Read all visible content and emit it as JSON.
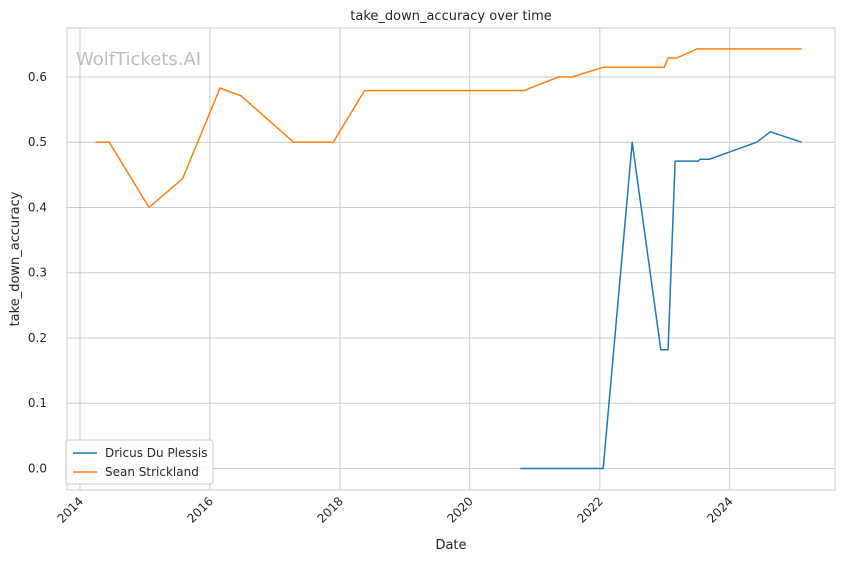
{
  "chart_data": {
    "type": "line",
    "title": "take_down_accuracy over time",
    "xlabel": "Date",
    "ylabel": "take_down_accuracy",
    "watermark": "WolfTickets.AI",
    "x_ticks": [
      "2014",
      "2016",
      "2018",
      "2020",
      "2022",
      "2024"
    ],
    "y_ticks": [
      "0.0",
      "0.1",
      "0.2",
      "0.3",
      "0.4",
      "0.5",
      "0.6"
    ],
    "xlim": [
      "2013-10-20",
      "2025-08-15"
    ],
    "ylim": [
      -0.033,
      0.675
    ],
    "grid": true,
    "legend_position": "lower-left",
    "series": [
      {
        "name": "Dricus Du Plessis",
        "color": "#1f77b4",
        "points": [
          [
            "2020-10-11",
            0.0
          ],
          [
            "2022-01-20",
            0.0
          ],
          [
            "2022-07-02",
            0.5
          ],
          [
            "2022-12-10",
            0.182
          ],
          [
            "2023-01-20",
            0.182
          ],
          [
            "2023-02-28",
            0.471
          ],
          [
            "2023-07-08",
            0.471
          ],
          [
            "2023-07-20",
            0.474
          ],
          [
            "2023-09-10",
            0.474
          ],
          [
            "2024-06-01",
            0.5
          ],
          [
            "2024-08-17",
            0.516
          ],
          [
            "2025-02-08",
            0.5
          ]
        ]
      },
      {
        "name": "Sean Strickland",
        "color": "#ff7f0e",
        "points": [
          [
            "2014-03-29",
            0.5
          ],
          [
            "2014-06-14",
            0.5
          ],
          [
            "2015-01-24",
            0.4
          ],
          [
            "2015-08-01",
            0.444
          ],
          [
            "2016-02-27",
            0.583
          ],
          [
            "2016-06-25",
            0.571
          ],
          [
            "2017-04-15",
            0.5
          ],
          [
            "2017-11-25",
            0.5
          ],
          [
            "2018-05-19",
            0.579
          ],
          [
            "2020-11-01",
            0.579
          ],
          [
            "2021-05-15",
            0.6
          ],
          [
            "2021-07-31",
            0.6
          ],
          [
            "2022-01-22",
            0.615
          ],
          [
            "2022-12-30",
            0.615
          ],
          [
            "2023-01-20",
            0.629
          ],
          [
            "2023-03-10",
            0.629
          ],
          [
            "2023-07-01",
            0.643
          ],
          [
            "2025-02-08",
            0.643
          ]
        ]
      }
    ]
  }
}
